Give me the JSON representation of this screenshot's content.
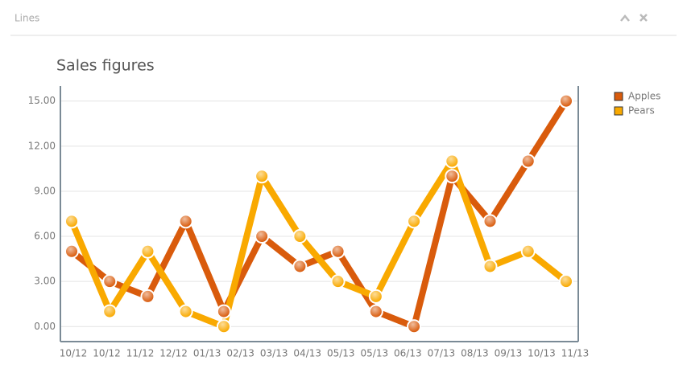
{
  "panel": {
    "title": "Lines"
  },
  "chart_data": {
    "type": "line",
    "title": "Sales figures",
    "x_labels": [
      "10/12",
      "10/12",
      "11/12",
      "12/12",
      "01/13",
      "02/13",
      "03/13",
      "04/13",
      "05/13",
      "05/13",
      "06/13",
      "07/13",
      "08/13",
      "09/13",
      "10/13",
      "11/13"
    ],
    "series": [
      {
        "name": "Apples",
        "color": "#d95b0c",
        "values": [
          5,
          3,
          2,
          7,
          1,
          6,
          4,
          5,
          1,
          0,
          10,
          7,
          11,
          15
        ]
      },
      {
        "name": "Pears",
        "color": "#f9a900",
        "values": [
          7,
          1,
          5,
          1,
          0,
          10,
          6,
          3,
          2,
          7,
          11,
          4,
          5,
          3
        ]
      }
    ],
    "ylim": [
      -1,
      16
    ],
    "yticks": [
      {
        "value": 0,
        "label": "0.00"
      },
      {
        "value": 3,
        "label": "3.00"
      },
      {
        "value": 6,
        "label": "6.00"
      },
      {
        "value": 9,
        "label": "9.00"
      },
      {
        "value": 12,
        "label": "12.00"
      },
      {
        "value": 15,
        "label": "15.00"
      }
    ],
    "grid": true,
    "legend": "right"
  }
}
